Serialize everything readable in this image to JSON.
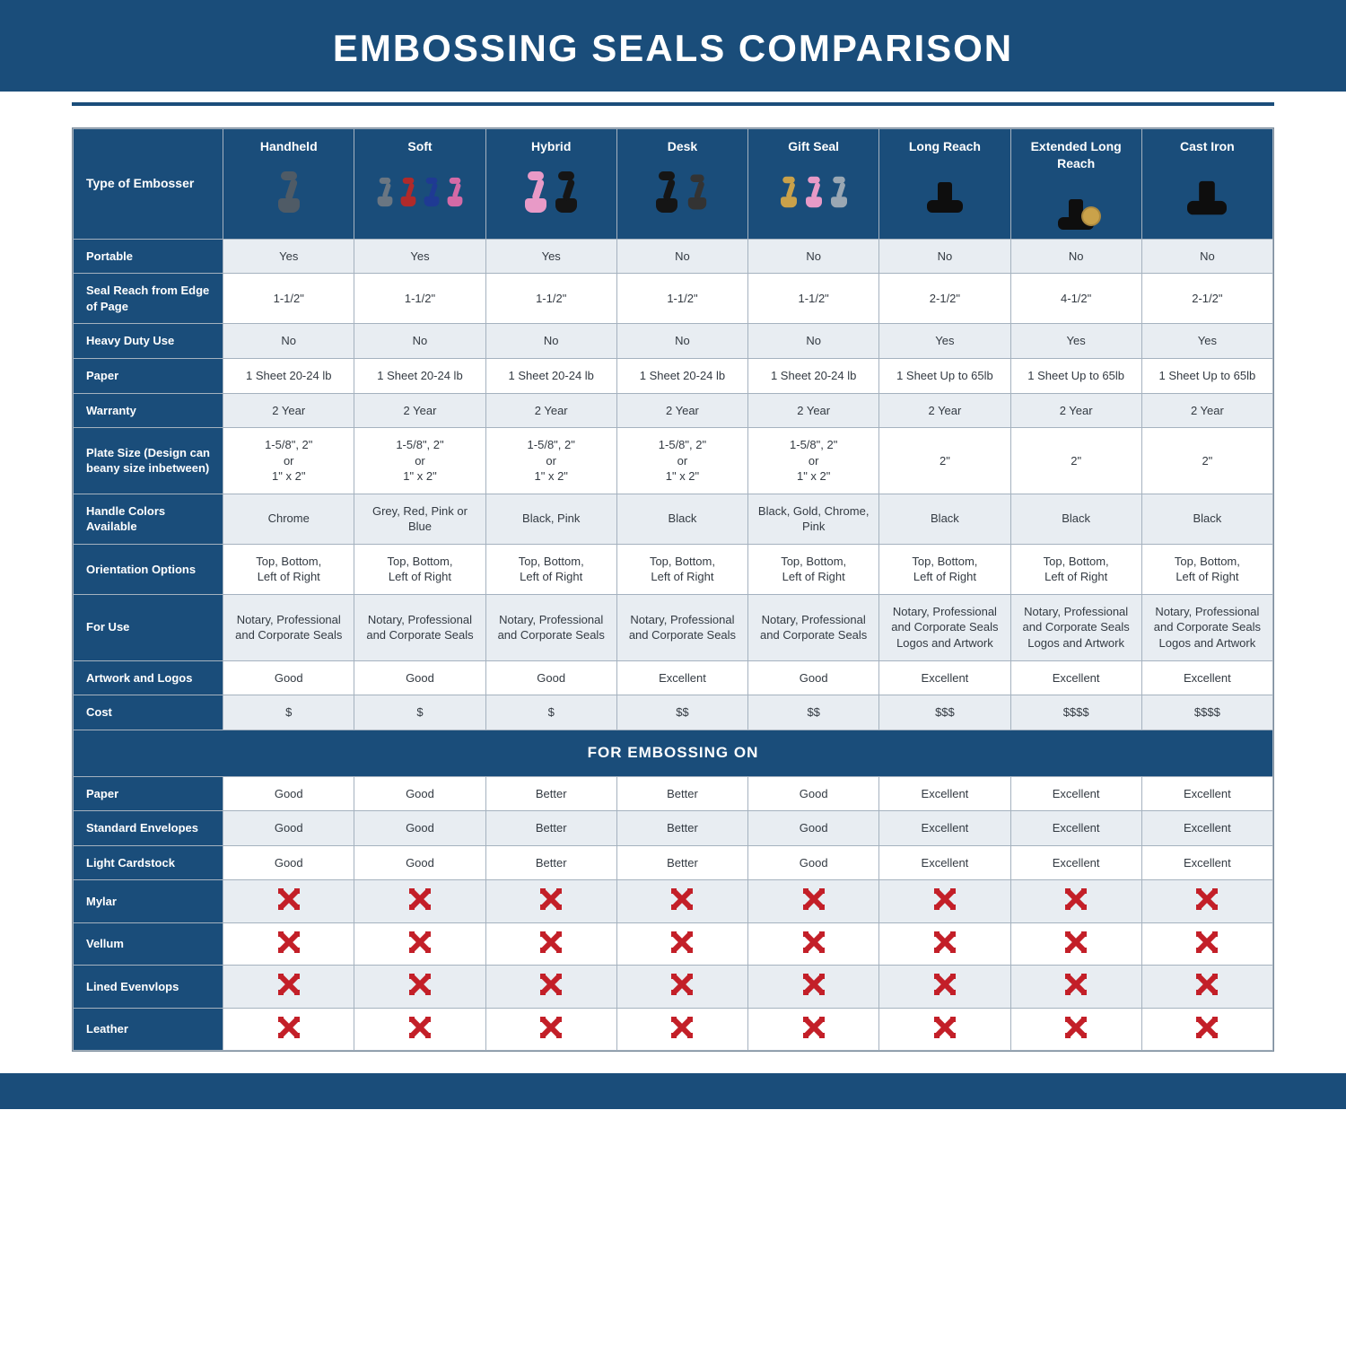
{
  "title": "EMBOSSING SEALS COMPARISON",
  "colors": {
    "brand": "#1a4d7a",
    "row_alt_bg": "#e8edf2",
    "row_bg": "#ffffff",
    "text": "#333a42",
    "x_mark": "#c31f28",
    "border": "#a5b2bf"
  },
  "header": {
    "row_label": "Type of Embosser",
    "columns": [
      {
        "label": "Handheld",
        "icon": "handheld",
        "palette": [
          "#4f5b66",
          "#9aa7b3"
        ]
      },
      {
        "label": "Soft",
        "icon": "soft",
        "palette": [
          "#6a7682",
          "#b02a2a",
          "#1f3a93",
          "#d46aa6"
        ]
      },
      {
        "label": "Hybrid",
        "icon": "hybrid",
        "palette": [
          "#e89ac7",
          "#151515"
        ]
      },
      {
        "label": "Desk",
        "icon": "desk",
        "palette": [
          "#151515",
          "#333333"
        ]
      },
      {
        "label": "Gift Seal",
        "icon": "gift",
        "palette": [
          "#c9a14a",
          "#e89ac7",
          "#9aa7b3"
        ]
      },
      {
        "label": "Long Reach",
        "icon": "long",
        "palette": [
          "#0e0e0e"
        ]
      },
      {
        "label": "Extended Long Reach",
        "icon": "xlong",
        "palette": [
          "#0e0e0e",
          "#caa24a"
        ]
      },
      {
        "label": "Cast Iron",
        "icon": "castiron",
        "palette": [
          "#0e0e0e"
        ]
      }
    ]
  },
  "rows": [
    {
      "label": "Portable",
      "alt": true,
      "cells": [
        "Yes",
        "Yes",
        "Yes",
        "No",
        "No",
        "No",
        "No",
        "No"
      ]
    },
    {
      "label": "Seal Reach from Edge of Page",
      "alt": false,
      "cells": [
        "1-1/2\"",
        "1-1/2\"",
        "1-1/2\"",
        "1-1/2\"",
        "1-1/2\"",
        "2-1/2\"",
        "4-1/2\"",
        "2-1/2\""
      ]
    },
    {
      "label": "Heavy Duty Use",
      "alt": true,
      "cells": [
        "No",
        "No",
        "No",
        "No",
        "No",
        "Yes",
        "Yes",
        "Yes"
      ]
    },
    {
      "label": "Paper",
      "alt": false,
      "cells": [
        "1 Sheet 20-24 lb",
        "1 Sheet 20-24 lb",
        "1 Sheet 20-24 lb",
        "1 Sheet 20-24 lb",
        "1 Sheet 20-24 lb",
        "1 Sheet Up to 65lb",
        "1 Sheet Up to 65lb",
        "1 Sheet Up to 65lb"
      ]
    },
    {
      "label": "Warranty",
      "alt": true,
      "cells": [
        "2 Year",
        "2 Year",
        "2 Year",
        "2 Year",
        "2 Year",
        "2 Year",
        "2 Year",
        "2 Year"
      ]
    },
    {
      "label": "Plate Size (Design can beany size inbetween)",
      "alt": false,
      "cells": [
        "1-5/8\", 2\"\nor\n1\" x 2\"",
        "1-5/8\", 2\"\nor\n1\" x 2\"",
        "1-5/8\", 2\"\nor\n1\" x 2\"",
        "1-5/8\", 2\"\nor\n1\" x 2\"",
        "1-5/8\", 2\"\nor\n1\" x 2\"",
        "2\"",
        "2\"",
        "2\""
      ]
    },
    {
      "label": "Handle Colors Available",
      "alt": true,
      "cells": [
        "Chrome",
        "Grey, Red, Pink or Blue",
        "Black, Pink",
        "Black",
        "Black, Gold, Chrome, Pink",
        "Black",
        "Black",
        "Black"
      ]
    },
    {
      "label": "Orientation Options",
      "alt": false,
      "cells": [
        "Top, Bottom,\nLeft of Right",
        "Top, Bottom,\nLeft of Right",
        "Top, Bottom,\nLeft of Right",
        "Top, Bottom,\nLeft of Right",
        "Top, Bottom,\nLeft of Right",
        "Top, Bottom,\nLeft of Right",
        "Top, Bottom,\nLeft of Right",
        "Top, Bottom,\nLeft of Right"
      ]
    },
    {
      "label": "For Use",
      "alt": true,
      "cells": [
        "Notary, Professional and Corporate Seals",
        "Notary, Professional and Corporate Seals",
        "Notary, Professional and Corporate Seals",
        "Notary, Professional and Corporate Seals",
        "Notary, Professional and Corporate Seals",
        "Notary, Professional and Corporate Seals Logos and Artwork",
        "Notary, Professional and Corporate Seals Logos and Artwork",
        "Notary, Professional and Corporate Seals Logos and Artwork"
      ]
    },
    {
      "label": "Artwork and Logos",
      "alt": false,
      "cells": [
        "Good",
        "Good",
        "Good",
        "Excellent",
        "Good",
        "Excellent",
        "Excellent",
        "Excellent"
      ]
    },
    {
      "label": "Cost",
      "alt": true,
      "cells": [
        "$",
        "$",
        "$",
        "$$",
        "$$",
        "$$$",
        "$$$$",
        "$$$$"
      ]
    }
  ],
  "section_heading": "FOR EMBOSSING ON",
  "material_rows": [
    {
      "label": "Paper",
      "alt": false,
      "cells": [
        "Good",
        "Good",
        "Better",
        "Better",
        "Good",
        "Excellent",
        "Excellent",
        "Excellent"
      ]
    },
    {
      "label": "Standard Envelopes",
      "alt": true,
      "cells": [
        "Good",
        "Good",
        "Better",
        "Better",
        "Good",
        "Excellent",
        "Excellent",
        "Excellent"
      ]
    },
    {
      "label": "Light Cardstock",
      "alt": false,
      "cells": [
        "Good",
        "Good",
        "Better",
        "Better",
        "Good",
        "Excellent",
        "Excellent",
        "Excellent"
      ]
    },
    {
      "label": "Mylar",
      "alt": true,
      "cells": [
        "X",
        "X",
        "X",
        "X",
        "X",
        "X",
        "X",
        "X"
      ]
    },
    {
      "label": "Vellum",
      "alt": false,
      "cells": [
        "X",
        "X",
        "X",
        "X",
        "X",
        "X",
        "X",
        "X"
      ]
    },
    {
      "label": "Lined Evenvlops",
      "alt": true,
      "cells": [
        "X",
        "X",
        "X",
        "X",
        "X",
        "X",
        "X",
        "X"
      ]
    },
    {
      "label": "Leather",
      "alt": false,
      "cells": [
        "X",
        "X",
        "X",
        "X",
        "X",
        "X",
        "X",
        "X"
      ]
    }
  ]
}
